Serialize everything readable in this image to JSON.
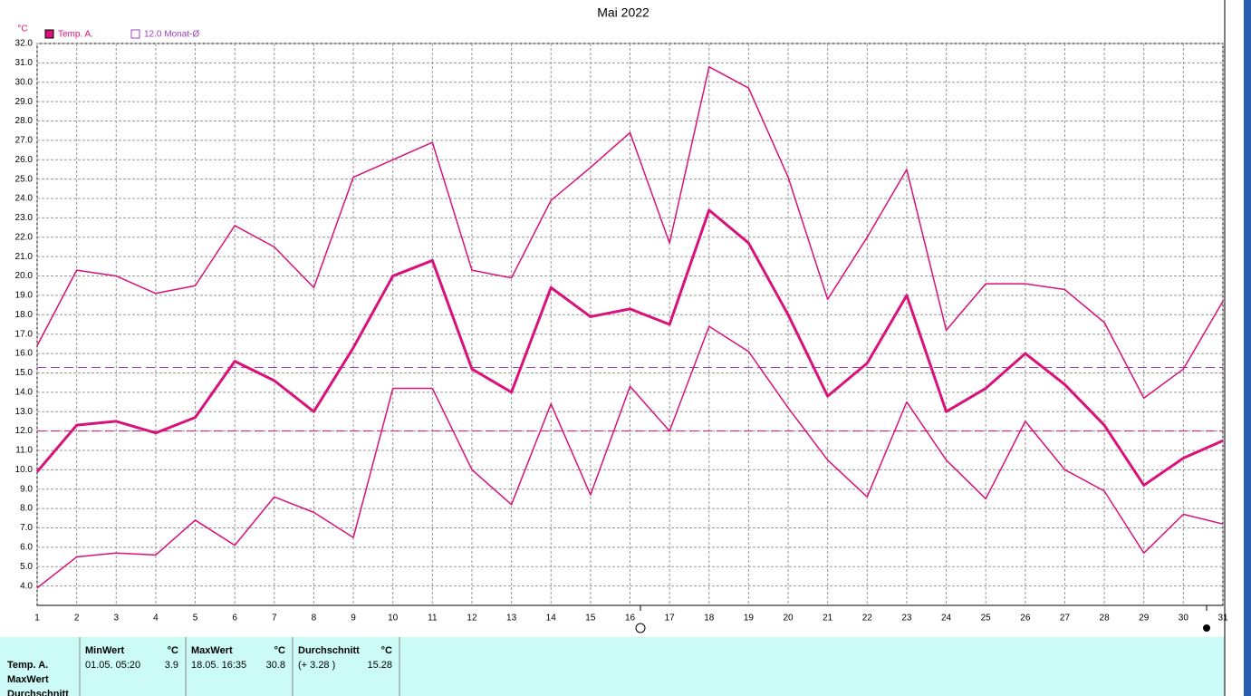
{
  "chart_data": {
    "type": "line",
    "title": "Mai 2022",
    "y_unit": "°C",
    "legend": [
      {
        "label": "Temp. A.",
        "color": "#d8127a",
        "filled": true
      },
      {
        "label": "12.0 Monat-Ø",
        "color": "#a040c0",
        "filled": false
      }
    ],
    "x": [
      1,
      2,
      3,
      4,
      5,
      6,
      7,
      8,
      9,
      10,
      11,
      12,
      13,
      14,
      15,
      16,
      17,
      18,
      19,
      20,
      21,
      22,
      23,
      24,
      25,
      26,
      27,
      28,
      29,
      30,
      31
    ],
    "xlim": [
      1,
      31
    ],
    "xticks": [
      1,
      2,
      3,
      4,
      5,
      6,
      7,
      8,
      9,
      10,
      11,
      12,
      13,
      14,
      15,
      16,
      17,
      18,
      19,
      20,
      21,
      22,
      23,
      24,
      25,
      26,
      27,
      28,
      29,
      30,
      31
    ],
    "ylim": [
      3,
      32
    ],
    "yticks": [
      {
        "value": 4,
        "label": "4.0"
      },
      {
        "value": 5,
        "label": "5.0"
      },
      {
        "value": 6,
        "label": "6.0"
      },
      {
        "value": 7,
        "label": "7.0"
      },
      {
        "value": 8,
        "label": "8.0"
      },
      {
        "value": 9,
        "label": "9.0"
      },
      {
        "value": 10,
        "label": "10.0"
      },
      {
        "value": 11,
        "label": "11.0"
      },
      {
        "value": 12,
        "label": "12.0"
      },
      {
        "value": 13,
        "label": "13.0"
      },
      {
        "value": 14,
        "label": "14.0"
      },
      {
        "value": 15,
        "label": "15.0"
      },
      {
        "value": 16,
        "label": "16.0"
      },
      {
        "value": 17,
        "label": "17.0"
      },
      {
        "value": 18,
        "label": "18.0"
      },
      {
        "value": 19,
        "label": "19.0"
      },
      {
        "value": 20,
        "label": "20.0"
      },
      {
        "value": 21,
        "label": "21.0"
      },
      {
        "value": 22,
        "label": "22.0"
      },
      {
        "value": 23,
        "label": "23.0"
      },
      {
        "value": 24,
        "label": "24.0"
      },
      {
        "value": 25,
        "label": "25.0"
      },
      {
        "value": 26,
        "label": "26.0"
      },
      {
        "value": 27,
        "label": "27.0"
      },
      {
        "value": 28,
        "label": "28.0"
      },
      {
        "value": 29,
        "label": "29.0"
      },
      {
        "value": 30,
        "label": "30.0"
      },
      {
        "value": 31,
        "label": "31.0"
      },
      {
        "value": 32,
        "label": "32.0"
      }
    ],
    "grid": true,
    "series": [
      {
        "color": "#d8127a",
        "width": 1.5,
        "values": [
          16.4,
          20.3,
          20.0,
          19.1,
          19.5,
          22.6,
          21.5,
          19.4,
          25.1,
          26.0,
          26.9,
          20.3,
          19.9,
          23.9,
          25.6,
          27.4,
          21.7,
          30.8,
          29.7,
          25.1,
          18.8,
          22.0,
          25.5,
          17.2,
          19.6,
          19.6,
          19.3,
          17.6,
          13.7,
          15.2,
          18.7
        ]
      },
      {
        "color": "#d8127a",
        "width": 3,
        "values": [
          9.9,
          12.3,
          12.5,
          11.9,
          12.7,
          15.6,
          14.6,
          13.0,
          16.3,
          20.0,
          20.8,
          15.2,
          14.0,
          19.4,
          17.9,
          18.3,
          17.5,
          23.4,
          21.7,
          18.0,
          13.8,
          15.5,
          19.0,
          13.0,
          14.2,
          16.0,
          14.4,
          12.3,
          9.2,
          10.6,
          11.5
        ]
      },
      {
        "color": "#d8127a",
        "width": 1.5,
        "values": [
          3.9,
          5.5,
          5.7,
          5.6,
          7.4,
          6.1,
          8.6,
          7.8,
          6.5,
          14.2,
          14.2,
          10.0,
          8.2,
          13.4,
          8.7,
          14.3,
          12.0,
          17.4,
          16.1,
          13.2,
          10.5,
          8.6,
          13.5,
          10.5,
          8.5,
          12.5,
          10.0,
          8.9,
          5.7,
          7.7,
          7.2
        ]
      }
    ],
    "reference_lines": [
      {
        "value": 15.28,
        "color": "#a040c0"
      },
      {
        "value": 12.0,
        "color": "#d8127a"
      }
    ]
  },
  "stats": {
    "row_labels": [
      "Temp. A.",
      "MaxWert",
      "Durchschnitt"
    ],
    "columns": [
      {
        "header": "MinWert",
        "unit": "°C",
        "when": "01.05.  05:20",
        "value": "3.9"
      },
      {
        "header": "MaxWert",
        "unit": "°C",
        "when": "18.05.  16:35",
        "value": "30.8"
      },
      {
        "header": "Durchschnitt",
        "unit": "°C",
        "when": "(+ 3.28 )",
        "value": "15.28"
      }
    ]
  }
}
